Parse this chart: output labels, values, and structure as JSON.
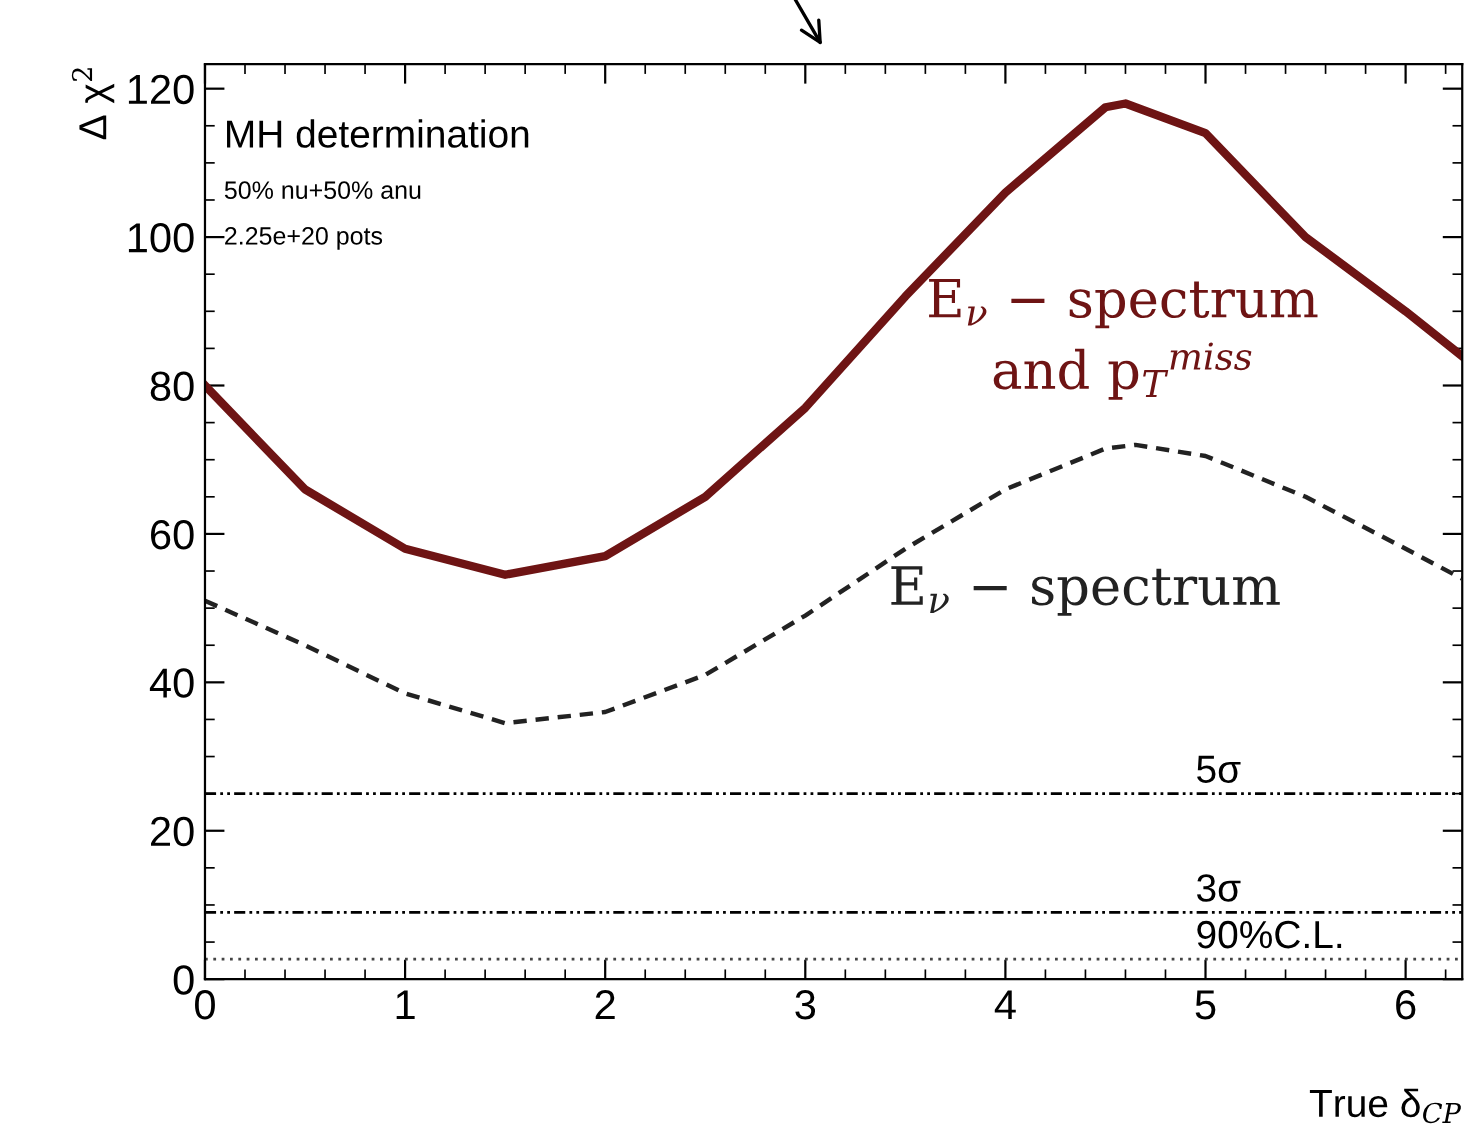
{
  "chart_data": {
    "type": "line",
    "xlabel": "True δ$_{CP}$",
    "ylabel": "Δ χ$^{2}$",
    "xlim": [
      0,
      6.283
    ],
    "ylim": [
      0,
      123.3
    ],
    "xticks": [
      0,
      1,
      2,
      3,
      4,
      5,
      6
    ],
    "yticks": [
      0,
      20,
      40,
      60,
      80,
      100,
      120
    ],
    "grid": false,
    "legend": false,
    "marker": "none",
    "series": [
      {
        "name": "E$_{ν}$ − spectrum\nand p$_{T}$$^{miss}$",
        "color": "#6e1414",
        "line_style": "solid",
        "x": [
          0,
          0.5,
          1.0,
          1.5,
          2.0,
          2.5,
          3.0,
          3.5,
          4.0,
          4.5,
          4.6,
          5.0,
          5.5,
          6.0,
          6.28
        ],
        "values": [
          80,
          66,
          58,
          54.5,
          57,
          65,
          77,
          92,
          106,
          117.5,
          118,
          114,
          100,
          90,
          84
        ]
      },
      {
        "name": "E$_{ν}$ − spectrum",
        "color": "#222222",
        "line_style": "dashed",
        "x": [
          0,
          0.5,
          1.0,
          1.5,
          2.0,
          2.5,
          3.0,
          3.5,
          4.0,
          4.5,
          4.65,
          5.0,
          5.5,
          6.0,
          6.28
        ],
        "values": [
          51,
          45,
          38.5,
          34.5,
          36,
          41,
          49,
          58,
          66,
          71.5,
          72,
          70.5,
          65,
          58,
          54
        ]
      }
    ],
    "ref_lines": [
      {
        "axis": "y",
        "value": 25,
        "label": "5σ",
        "color": "#000000",
        "line_style": "dashdot"
      },
      {
        "axis": "y",
        "value": 9,
        "label": "3σ",
        "color": "#000000",
        "line_style": "dashdot"
      },
      {
        "axis": "y",
        "value": 2.71,
        "label": "90%C.L.",
        "color": "#444444",
        "line_style": "dotted"
      }
    ],
    "annotations": [
      "MH determination",
      "50% nu+50% anu",
      "2.25e+20 pots"
    ]
  }
}
